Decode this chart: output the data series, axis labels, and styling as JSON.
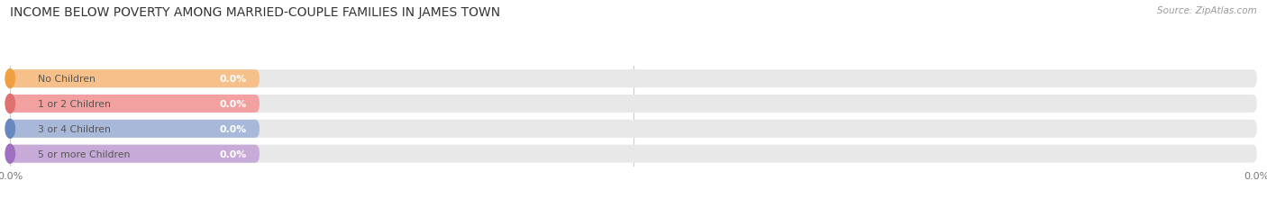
{
  "title": "INCOME BELOW POVERTY AMONG MARRIED-COUPLE FAMILIES IN JAMES TOWN",
  "source": "Source: ZipAtlas.com",
  "categories": [
    "No Children",
    "1 or 2 Children",
    "3 or 4 Children",
    "5 or more Children"
  ],
  "values": [
    0.0,
    0.0,
    0.0,
    0.0
  ],
  "bar_colors": [
    "#f5c08a",
    "#f2a0a0",
    "#a8b8d8",
    "#c8aad8"
  ],
  "circle_colors": [
    "#f0a040",
    "#e07070",
    "#6888c0",
    "#a070c0"
  ],
  "background_color": "#ffffff",
  "bar_bg_color": "#e8e8e8",
  "label_color": "#555555",
  "value_label_color": "#ffffff",
  "title_color": "#333333",
  "source_color": "#999999",
  "xlim": [
    0,
    100
  ],
  "figsize": [
    14.06,
    2.32
  ],
  "dpi": 100,
  "xtick_labels": [
    "0.0%",
    "0.0%"
  ],
  "xtick_positions": [
    0,
    100
  ]
}
